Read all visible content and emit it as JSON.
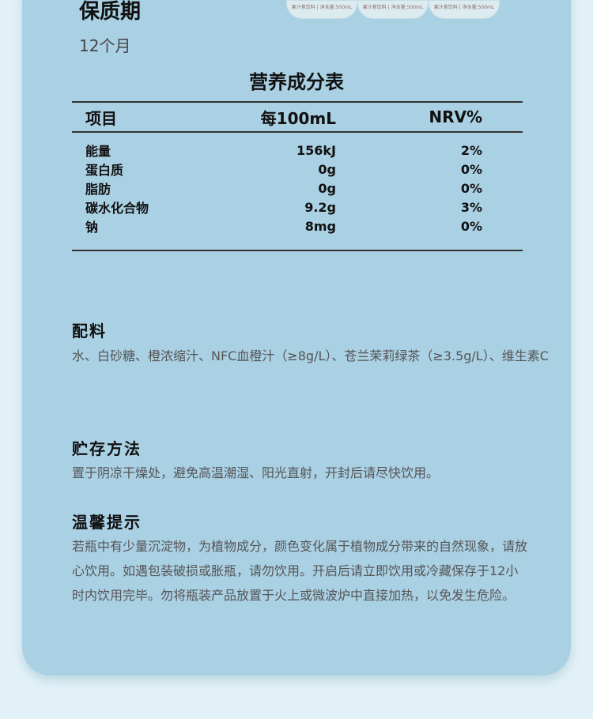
{
  "shelf_life": {
    "title": "保质期",
    "value": "12个月"
  },
  "product_image": {
    "labels": [
      "果汁茶饮料 | 净含量:500mL",
      "果汁茶饮料 | 净含量:500mL",
      "果汁茶饮料 | 净含量:500mL"
    ]
  },
  "nutrition": {
    "title": "营养成分表",
    "headers": [
      "项目",
      "每100mL",
      "NRV%"
    ],
    "rows": [
      [
        "能量",
        "156kJ",
        "2%"
      ],
      [
        "蛋白质",
        "0g",
        "0%"
      ],
      [
        "脂肪",
        "0g",
        "0%"
      ],
      [
        "碳水化合物",
        "9.2g",
        "3%"
      ],
      [
        "钠",
        "8mg",
        "0%"
      ]
    ]
  },
  "ingredients": {
    "title": "配料",
    "text": "水、白砂糖、橙浓缩汁、NFC血橙汁（≥8g/L）、苍兰茉莉绿茶（≥3.5g/L）、维生素C"
  },
  "storage": {
    "title": "贮存方法",
    "text": "置于阴凉干燥处，避免高温潮湿、阳光直射，开封后请尽快饮用。"
  },
  "tips": {
    "title": "温馨提示",
    "text": "若瓶中有少量沉淀物，为植物成分，颜色变化属于植物成分带来的自然现象，请放心饮用。如遇包装破损或胀瓶，请勿饮用。开启后请立即饮用或冷藏保存于12小时内饮用完毕。勿将瓶装产品放置于火上或微波炉中直接加热，以免发生危险。"
  }
}
